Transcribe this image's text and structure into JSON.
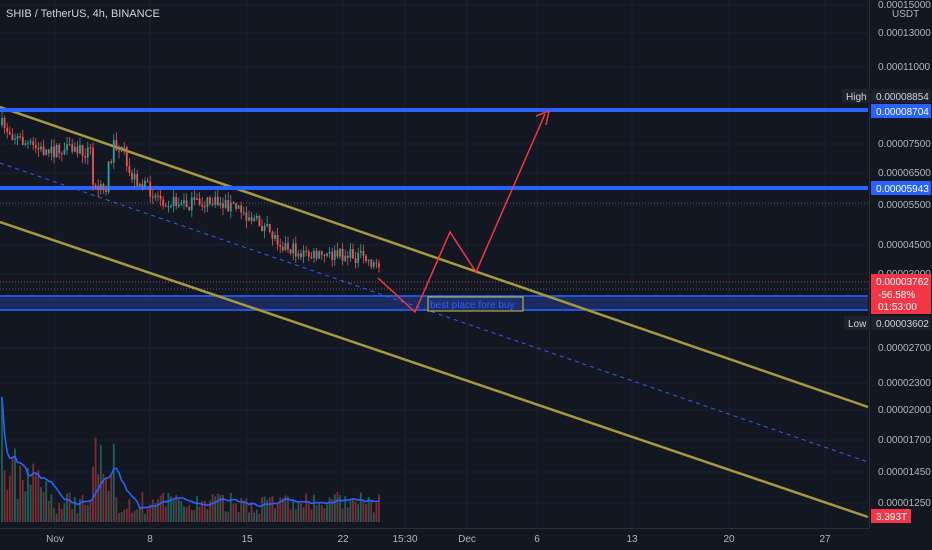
{
  "header": {
    "symbol": "SHIB / TetherUS, 4h, BINANCE",
    "unit_label": "USDT"
  },
  "colors": {
    "background": "#131722",
    "axis_text": "#b2b5be",
    "candle_up": "#26a69a",
    "candle_down": "#ef5350",
    "channel": "#a89a3c",
    "level_line": "#2962ff",
    "arrow": "#f23645",
    "volume_ma": "#2962ff",
    "callout_text": "#2962ff",
    "callout_border": "#d4c24a"
  },
  "chart_data": {
    "type": "candlestick",
    "price_axis": {
      "ticks": [
        "0.00015000",
        "0.00013000",
        "0.00011000",
        "0.00007500",
        "0.00006500",
        "0.00005500",
        "0.00004500",
        "0.00003000",
        "0.00002700",
        "0.00002300",
        "0.00002000",
        "0.00001700",
        "0.00001450",
        "0.00001250"
      ],
      "scale": "log",
      "tick_values": [
        0.00015,
        0.00013,
        0.00011,
        7.5e-05,
        6.5e-05,
        5.5e-05,
        4.5e-05,
        3e-05,
        2.7e-05,
        2.3e-05,
        2e-05,
        1.7e-05,
        1.45e-05,
        1.25e-05
      ]
    },
    "time_axis": {
      "ticks": [
        "Nov",
        "8",
        "15",
        "22",
        "15:30",
        "Dec",
        "6",
        "13",
        "20",
        "27"
      ]
    },
    "labels": {
      "high_label": "High",
      "high_value": "0.00008854",
      "level_upper_value": "0.00008704",
      "level_mid_value": "0.00005943",
      "current_price": "0.00003762",
      "change_percent": "-56.58%",
      "countdown": "01:53:00",
      "low_label": "Low",
      "low_value": "0.00003602",
      "volume_value": "3.393T"
    },
    "levels": [
      {
        "name": "upper-resistance",
        "value": 8.704e-05
      },
      {
        "name": "mid-resistance",
        "value": 5.943e-05
      },
      {
        "name": "support-zone",
        "value": 3.55e-05
      }
    ],
    "annotation": "best place fore buy"
  }
}
